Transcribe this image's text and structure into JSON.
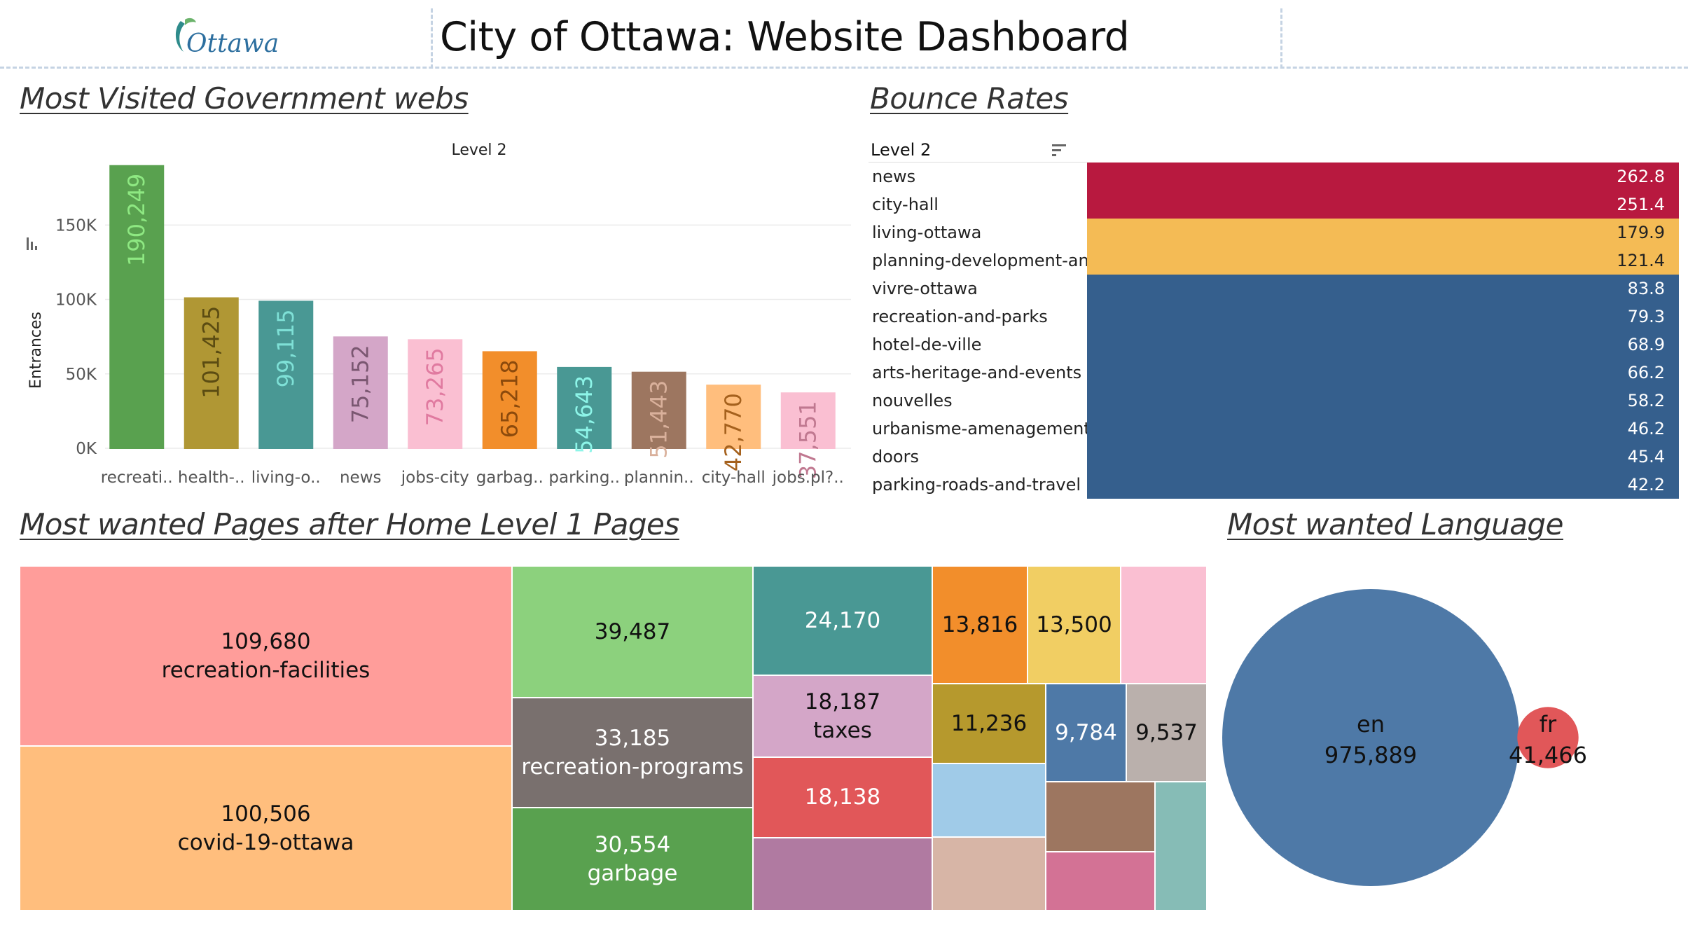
{
  "header": {
    "logo_text": "Ottawa",
    "title": "City of Ottawa: Website Dashboard"
  },
  "sections": {
    "most_visited": "Most Visited Government webs",
    "bounce_rates": "Bounce Rates",
    "most_wanted_pages": "Most wanted Pages after Home Level 1 Pages",
    "most_wanted_language": "Most wanted Language"
  },
  "colors": {
    "dashed_separator": "#c5d3e3",
    "bounce_high": "#b8193f",
    "bounce_mid": "#f4bb55",
    "bounce_low": "#355f8d"
  },
  "chart_data": [
    {
      "type": "bar",
      "title": "Level 2",
      "ylabel": "Entrances",
      "ylim": [
        0,
        200000
      ],
      "yticks": [
        "0K",
        "50K",
        "100K",
        "150K"
      ],
      "ytick_values": [
        0,
        50000,
        100000,
        150000
      ],
      "sort_icon": "sort-icon",
      "categories": [
        "recreati..",
        "health-..",
        "living-o..",
        "news",
        "jobs-city",
        "garbag..",
        "parking..",
        "plannin..",
        "city-hall",
        "jobs.pl?.."
      ],
      "values": [
        190249,
        101425,
        99115,
        75152,
        73265,
        65218,
        54643,
        51443,
        42770,
        37551
      ],
      "value_labels": [
        "190,249",
        "101,425",
        "99,115",
        "75,152",
        "73,265",
        "65,218",
        "54,643",
        "51,443",
        "42,770",
        "37,551"
      ],
      "bar_colors": [
        "#59a14f",
        "#b09734",
        "#499894",
        "#d4a6c8",
        "#fabfd2",
        "#f28e2b",
        "#499894",
        "#9d7660",
        "#ffbe7d",
        "#fabfd2"
      ],
      "label_colors": [
        "#8ee882",
        "#5b4c12",
        "#7ee0d6",
        "#7a5771",
        "#e07aa0",
        "#8c4a0c",
        "#8df5e8",
        "#d9b09b",
        "#a5611d",
        "#c07890"
      ]
    },
    {
      "type": "table",
      "title": "Bounce Rates",
      "column_header": "Level 2",
      "sort_icon": "sort-icon",
      "categories": [
        "news",
        "city-hall",
        "living-ottawa",
        "planning-development-an..",
        "vivre-ottawa",
        "recreation-and-parks",
        "hotel-de-ville",
        "arts-heritage-and-events",
        "nouvelles",
        "urbanisme-amenagement..",
        "doors",
        "parking-roads-and-travel"
      ],
      "values": [
        262.8,
        251.4,
        179.9,
        121.4,
        83.8,
        79.3,
        68.9,
        66.2,
        58.2,
        46.2,
        45.4,
        42.2
      ],
      "value_labels": [
        "262.8",
        "251.4",
        "179.9",
        "121.4",
        "83.8",
        "79.3",
        "68.9",
        "66.2",
        "58.2",
        "46.2",
        "45.4",
        "42.2"
      ],
      "cell_colors": [
        "#b8193f",
        "#b8193f",
        "#f4bb55",
        "#f4bb55",
        "#355f8d",
        "#355f8d",
        "#355f8d",
        "#355f8d",
        "#355f8d",
        "#355f8d",
        "#355f8d",
        "#355f8d"
      ],
      "value_text_colors": [
        "#ffffff",
        "#ffffff",
        "#222222",
        "#222222",
        "#ffffff",
        "#ffffff",
        "#ffffff",
        "#ffffff",
        "#ffffff",
        "#ffffff",
        "#ffffff",
        "#ffffff"
      ]
    },
    {
      "type": "treemap",
      "title": "Most wanted Pages after Home Level 1 Pages",
      "items": [
        {
          "value": 109680,
          "value_label": "109,680",
          "label": "recreation-facilities",
          "color": "#ff9d9a"
        },
        {
          "value": 100506,
          "value_label": "100,506",
          "label": "covid-19-ottawa",
          "color": "#ffbe7d"
        },
        {
          "value": 39487,
          "value_label": "39,487",
          "label": "",
          "color": "#8cd17d"
        },
        {
          "value": 33185,
          "value_label": "33,185",
          "label": "recreation-programs",
          "color": "#79706e"
        },
        {
          "value": 30554,
          "value_label": "30,554",
          "label": "garbage",
          "color": "#59a14f"
        },
        {
          "value": 24170,
          "value_label": "24,170",
          "label": "",
          "color": "#499894"
        },
        {
          "value": 18187,
          "value_label": "18,187",
          "label": "taxes",
          "color": "#d4a6c8"
        },
        {
          "value": 18138,
          "value_label": "18,138",
          "label": "",
          "color": "#e15759"
        },
        {
          "value": 13816,
          "value_label": "13,816",
          "label": "",
          "color": "#f28e2b"
        },
        {
          "value": 13500,
          "value_label": "13,500",
          "label": "",
          "color": "#f1ce63"
        },
        {
          "value": 11236,
          "value_label": "11,236",
          "label": "",
          "color": "#b6992d"
        },
        {
          "value": 9784,
          "value_label": "9,784",
          "label": "",
          "color": "#4e79a7"
        },
        {
          "value": 9537,
          "value_label": "9,537",
          "label": "",
          "color": "#bab0ac"
        },
        {
          "value": null,
          "value_label": "",
          "label": "",
          "color": "#fabfd2"
        },
        {
          "value": null,
          "value_label": "",
          "label": "",
          "color": "#b07aa1"
        },
        {
          "value": null,
          "value_label": "",
          "label": "",
          "color": "#a0cbe8"
        },
        {
          "value": null,
          "value_label": "",
          "label": "",
          "color": "#d7b5a6"
        },
        {
          "value": null,
          "value_label": "",
          "label": "",
          "color": "#9d7660"
        },
        {
          "value": null,
          "value_label": "",
          "label": "",
          "color": "#d37295"
        },
        {
          "value": null,
          "value_label": "",
          "label": "",
          "color": "#86bcb6"
        }
      ]
    },
    {
      "type": "bubble",
      "title": "Most wanted Language",
      "items": [
        {
          "label": "en",
          "value": 975889,
          "value_label": "975,889",
          "color": "#4e79a7"
        },
        {
          "label": "fr",
          "value": 41466,
          "value_label": "41,466",
          "color": "#e15759"
        }
      ]
    }
  ]
}
